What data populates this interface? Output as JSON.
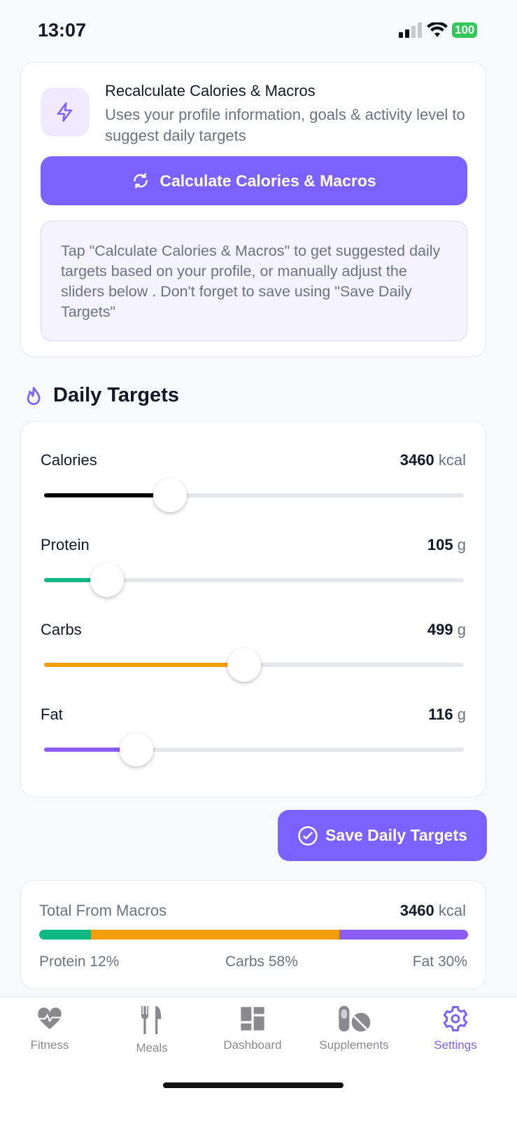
{
  "status": {
    "time": "13:07",
    "battery": "100"
  },
  "recalc": {
    "title": "Recalculate Calories & Macros",
    "subtitle": "Uses your profile information, goals & activity level to suggest daily targets",
    "button": "Calculate Calories & Macros",
    "hint": "Tap \"Calculate Calories & Macros\" to get suggested daily targets based on your profile, or manually adjust the sliders below . Don't forget to save using \"Save Daily Targets\""
  },
  "daily": {
    "title": "Daily Targets",
    "rows": [
      {
        "label": "Calories",
        "value": "3460",
        "unit": "kcal",
        "fraction": 0.3,
        "color": "#000000"
      },
      {
        "label": "Protein",
        "value": "105",
        "unit": "g",
        "fraction": 0.15,
        "color": "#10b981"
      },
      {
        "label": "Carbs",
        "value": "499",
        "unit": "g",
        "fraction": 0.477,
        "color": "#f59e0b"
      },
      {
        "label": "Fat",
        "value": "116",
        "unit": "g",
        "fraction": 0.22,
        "color": "#8b5cf6"
      }
    ]
  },
  "save_button": "Save Daily Targets",
  "totals": {
    "title": "Total From Macros",
    "value": "3460",
    "unit": "kcal",
    "protein": "Protein 12%",
    "carbs": "Carbs 58%",
    "fat": "Fat 30%",
    "protein_pct": 12,
    "carbs_pct": 58,
    "fat_pct": 30
  },
  "nav": [
    {
      "label": "Fitness"
    },
    {
      "label": "Meals"
    },
    {
      "label": "Dashboard"
    },
    {
      "label": "Supplements"
    },
    {
      "label": "Settings",
      "active": true
    }
  ],
  "colors": {
    "accent": "#7b61ff",
    "inactive": "#8a8a8e"
  }
}
